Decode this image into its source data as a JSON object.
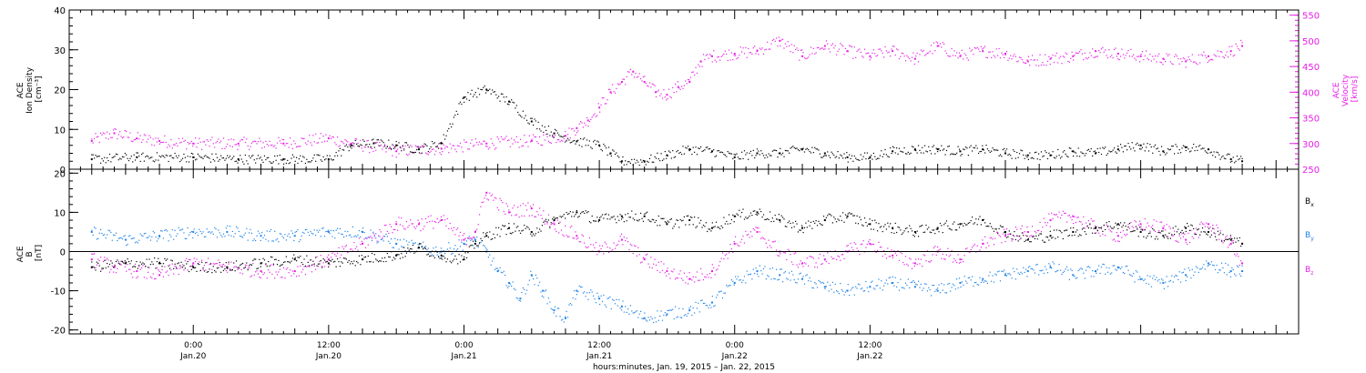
{
  "chart_data": [
    {
      "type": "scatter",
      "panel": "top",
      "left_axis": {
        "label_lines": [
          "ACE",
          "Ion Density",
          "[cm⁻³]"
        ],
        "ylim": [
          0,
          40
        ],
        "ticks": [
          0,
          10,
          20,
          30,
          40
        ],
        "color": "#000000"
      },
      "right_axis": {
        "label_lines": [
          "ACE",
          "Velocity",
          "[km/s]"
        ],
        "ylim": [
          250,
          560
        ],
        "ticks": [
          250,
          300,
          350,
          400,
          450,
          500,
          550
        ],
        "color": "#e61ee6"
      },
      "series": [
        {
          "name": "ACE Ion Density",
          "axis": "left",
          "color": "#000000",
          "x": [
            -9,
            -5,
            0,
            4,
            8,
            12,
            14,
            16,
            18,
            20,
            22,
            24,
            26,
            28,
            30,
            32,
            34,
            36,
            37,
            38,
            40,
            42,
            44,
            46,
            48,
            50,
            52,
            54,
            56,
            58,
            60,
            62,
            64,
            66,
            68,
            70,
            72,
            74,
            76,
            78,
            80,
            82,
            84,
            86,
            88,
            90,
            92,
            93
          ],
          "y": [
            2.5,
            3.0,
            3.0,
            2.5,
            2.5,
            2.5,
            6.0,
            6.5,
            6.0,
            5.0,
            6.5,
            18.0,
            20.0,
            17.0,
            12.0,
            9.0,
            7.0,
            6.0,
            4.0,
            2.0,
            2.0,
            3.5,
            5.0,
            4.5,
            3.0,
            4.0,
            4.0,
            5.0,
            4.0,
            3.0,
            3.0,
            4.5,
            5.0,
            5.0,
            4.5,
            5.0,
            4.0,
            3.5,
            3.5,
            4.5,
            4.0,
            5.0,
            6.0,
            4.5,
            5.5,
            5.0,
            2.5,
            2.0
          ]
        },
        {
          "name": "ACE Velocity",
          "axis": "right",
          "color": "#e61ee6",
          "x": [
            -9,
            -7,
            -5,
            -3,
            0,
            4,
            8,
            12,
            14,
            18,
            22,
            26,
            30,
            33,
            34,
            35,
            36,
            37,
            38,
            39,
            40,
            41,
            42,
            43,
            44,
            45,
            46,
            48,
            50,
            52,
            54,
            56,
            58,
            60,
            62,
            64,
            66,
            68,
            70,
            72,
            74,
            76,
            78,
            80,
            82,
            84,
            86,
            88,
            90,
            92,
            93
          ],
          "y": [
            305,
            320,
            310,
            305,
            300,
            300,
            300,
            310,
            300,
            285,
            290,
            300,
            305,
            315,
            330,
            345,
            370,
            400,
            420,
            440,
            420,
            400,
            395,
            410,
            420,
            460,
            470,
            475,
            480,
            500,
            470,
            490,
            480,
            470,
            480,
            465,
            490,
            470,
            480,
            475,
            460,
            465,
            470,
            480,
            475,
            470,
            465,
            460,
            470,
            480,
            490
          ]
        }
      ]
    },
    {
      "type": "scatter",
      "panel": "bottom",
      "left_axis": {
        "label_lines": [
          "ACE",
          "B",
          "[nT]"
        ],
        "ylim": [
          -21,
          21
        ],
        "ticks": [
          -20,
          -10,
          0,
          10,
          20
        ]
      },
      "zero_line": true,
      "series": [
        {
          "name": "Bx",
          "legend_main": "B",
          "legend_sub": "x",
          "color": "#000000",
          "x": [
            -9,
            -6,
            -3,
            0,
            3,
            6,
            9,
            12,
            15,
            18,
            20,
            22,
            24,
            25,
            26,
            28,
            30,
            32,
            34,
            36,
            38,
            40,
            42,
            44,
            46,
            48,
            50,
            52,
            54,
            56,
            58,
            60,
            62,
            64,
            66,
            68,
            70,
            72,
            74,
            76,
            78,
            80,
            82,
            84,
            86,
            88,
            90,
            92,
            93
          ],
          "y": [
            -4,
            -3,
            -3,
            -4,
            -4,
            -3,
            -2,
            -3,
            -2,
            -1,
            1,
            -1,
            -2,
            2,
            4,
            6,
            5,
            8,
            10,
            8,
            9,
            9,
            7,
            8,
            6,
            9,
            10,
            8,
            6,
            8,
            9,
            7,
            6,
            5,
            6,
            7,
            8,
            5,
            3,
            4,
            5,
            6,
            7,
            5,
            4,
            6,
            5,
            3,
            2
          ]
        },
        {
          "name": "By",
          "legend_main": "B",
          "legend_sub": "y",
          "color": "#1e82e6",
          "x": [
            -9,
            -6,
            -3,
            0,
            3,
            6,
            9,
            12,
            15,
            18,
            20,
            22,
            24,
            25,
            26,
            27,
            28,
            29,
            30,
            31,
            32,
            33,
            34,
            36,
            38,
            40,
            42,
            44,
            46,
            48,
            50,
            52,
            54,
            56,
            58,
            60,
            62,
            64,
            66,
            68,
            70,
            72,
            74,
            76,
            78,
            80,
            82,
            84,
            86,
            88,
            90,
            92,
            93
          ],
          "y": [
            5,
            3,
            4,
            5,
            5,
            4,
            4,
            5,
            5,
            2,
            1,
            0,
            2,
            3,
            0,
            -5,
            -8,
            -12,
            -6,
            -10,
            -15,
            -17,
            -10,
            -12,
            -14,
            -17,
            -16,
            -15,
            -13,
            -8,
            -5,
            -6,
            -7,
            -9,
            -10,
            -9,
            -8,
            -9,
            -10,
            -8,
            -7,
            -6,
            -5,
            -4,
            -6,
            -5,
            -4,
            -7,
            -8,
            -6,
            -3,
            -5,
            -5
          ]
        },
        {
          "name": "Bz",
          "legend_main": "B",
          "legend_sub": "z",
          "color": "#e61ee6",
          "x": [
            -9,
            -7,
            -5,
            -3,
            0,
            3,
            6,
            9,
            12,
            15,
            18,
            20,
            22,
            24,
            25,
            26,
            28,
            30,
            32,
            34,
            36,
            38,
            40,
            42,
            44,
            46,
            48,
            50,
            52,
            54,
            56,
            58,
            60,
            62,
            64,
            66,
            68,
            70,
            72,
            74,
            76,
            78,
            80,
            82,
            84,
            86,
            88,
            90,
            92,
            93
          ],
          "y": [
            -2,
            -4,
            -5,
            -6,
            -3,
            -4,
            -5,
            -5,
            -2,
            2,
            7,
            7,
            8,
            3,
            5,
            15,
            10,
            11,
            7,
            4,
            0,
            3,
            -2,
            -5,
            -7,
            -5,
            2,
            5,
            0,
            -3,
            -2,
            0,
            2,
            -1,
            -3,
            0,
            -2,
            2,
            4,
            5,
            8,
            9,
            6,
            4,
            7,
            6,
            3,
            7,
            2,
            -3
          ]
        }
      ],
      "legend_placement": "right"
    }
  ],
  "x_axis": {
    "xlim": [
      -11,
      98
    ],
    "time_labels": [
      {
        "x": 0,
        "time": "0:00",
        "date": "Jan.20"
      },
      {
        "x": 12,
        "time": "12:00",
        "date": "Jan.20"
      },
      {
        "x": 24,
        "time": "0:00",
        "date": "Jan.21"
      },
      {
        "x": 36,
        "time": "12:00",
        "date": "Jan.21"
      },
      {
        "x": 48,
        "time": "0:00",
        "date": "Jan.22"
      },
      {
        "x": 60,
        "time": "12:00",
        "date": "Jan.22"
      }
    ],
    "label": "hours:minutes, Jan. 19, 2015 – Jan. 22, 2015"
  }
}
